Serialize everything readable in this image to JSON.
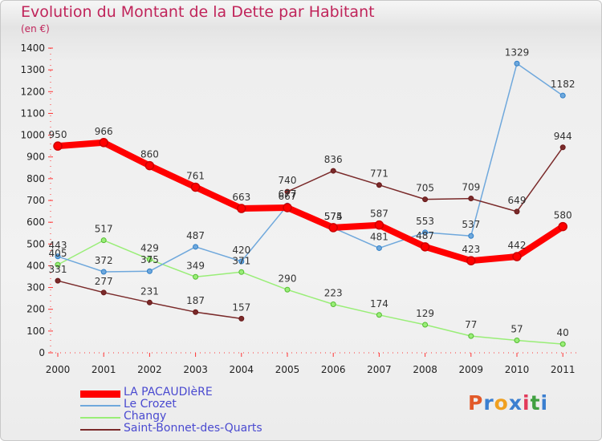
{
  "header": {
    "title": "Evolution du Montant de la Dette par Habitant",
    "unit": "(en €)"
  },
  "logo": {
    "text": "Proxiti",
    "letter_colors": [
      "#e25a2a",
      "#3b7fd0",
      "#f0a020",
      "#3b7fd0",
      "#e23a5a",
      "#40a040",
      "#3b7fd0"
    ]
  },
  "chart_data": {
    "type": "line",
    "title": "Evolution du Montant de la Dette par Habitant",
    "subtitle": "(en €)",
    "xlabel": "",
    "ylabel": "",
    "x": [
      "2000",
      "2001",
      "2002",
      "2003",
      "2004",
      "2005",
      "2006",
      "2007",
      "2008",
      "2009",
      "2010",
      "2011"
    ],
    "ylim": [
      0,
      1400
    ],
    "yticks": [
      0,
      100,
      200,
      300,
      400,
      500,
      600,
      700,
      800,
      900,
      1000,
      1100,
      1200,
      1300,
      1400
    ],
    "grid": false,
    "legend_position": "bottom-left",
    "series": [
      {
        "name": "LA PACAUDIèRE",
        "color": "#ff0000",
        "marker_color": "#cc0000",
        "values": [
          950,
          966,
          860,
          761,
          663,
          667,
          575,
          587,
          487,
          423,
          442,
          580
        ],
        "labels": [
          "950",
          "966",
          "860",
          "761",
          "663",
          "667",
          "575",
          "587",
          "487",
          "423",
          "442",
          "580"
        ]
      },
      {
        "name": "Le Crozet",
        "color": "#6fa8dc",
        "marker_color": "#2f7fc8",
        "values": [
          443,
          372,
          375,
          487,
          420,
          677,
          574,
          481,
          553,
          537,
          1329,
          1182
        ],
        "labels": [
          "443",
          "372",
          "375",
          "487",
          "420",
          "677",
          "574",
          "481",
          "553",
          "537",
          "1329",
          "1182"
        ]
      },
      {
        "name": "Changy",
        "color": "#99ee77",
        "marker_color": "#55bb33",
        "values": [
          405,
          517,
          429,
          349,
          371,
          290,
          223,
          174,
          129,
          77,
          57,
          40
        ],
        "labels": [
          "405",
          "517",
          "429",
          "349",
          "371",
          "290",
          "223",
          "174",
          "129",
          "77",
          "57",
          "40"
        ]
      },
      {
        "name": "Saint-Bonnet-des-Quarts",
        "color": "#7a2a2a",
        "marker_color": "#6a1a1a",
        "values": [
          331,
          277,
          231,
          187,
          157,
          740,
          836,
          771,
          705,
          709,
          649,
          944
        ],
        "labels": [
          "331",
          "277",
          "231",
          "187",
          "157",
          "740",
          "836",
          "771",
          "705",
          "709",
          "649",
          "944"
        ]
      }
    ]
  }
}
